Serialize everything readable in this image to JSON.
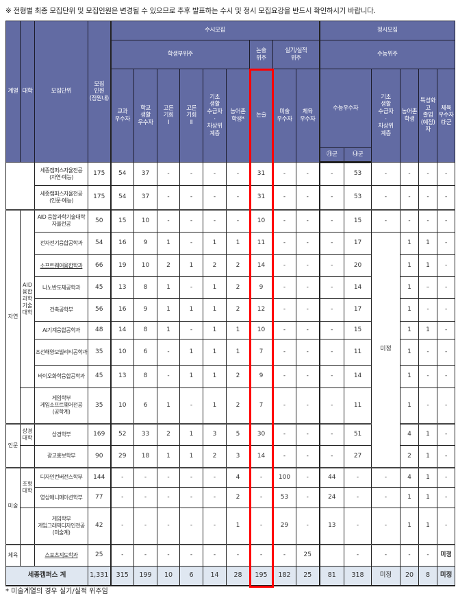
{
  "notice": "※ 전형별 최종 모집단위 및 모집인원은 변경될 수 있으므로 추후 발표하는 수시 및 정시 모집요강을 반드시 확인하시기 바랍니다.",
  "footnote": "* 미술계열의 경우 실기/실적 위주임",
  "colors": {
    "header_bg": "#626ba3",
    "total_bg": "#dfe7f1",
    "highlight": "#ff0000"
  },
  "highlighted_column": "논술",
  "header": {
    "field": "계열",
    "college": "대학",
    "unit": "모집단위",
    "quota": "모집\n인원\n(정원내)",
    "susi": "수시모집",
    "jeongsi": "정시모집",
    "susi_groups": [
      "학생부위주",
      "논술\n위주",
      "실기/실적\n위주"
    ],
    "jeongsi_group": "수능위주",
    "susi_columns": [
      "교과\n우수자",
      "학교\n생활\n우수자",
      "고른\n기회\nⅠ",
      "고른\n기회\nⅡ",
      "기초\n생활\n수급자\n·\n차상위\n계층",
      "농어촌\n학생*",
      "논술",
      "미술\n우수자",
      "체육\n우수자"
    ],
    "suneung_excellent": "수능우수자",
    "suneung_sub": [
      "㉮군",
      "㉯군"
    ],
    "jeongsi_columns": [
      "기초\n생활\n수급자\n·\n차상위\n계층",
      "농어촌\n학생",
      "특성화\n고\n졸업\n(예정)\n자",
      "체육\n우수자\n㉰군"
    ]
  },
  "groups": {
    "nature": "자연",
    "humanities": "인문",
    "art": "미술",
    "sports": "체육",
    "aid_college": "AID\n융합\n과학\n기술\n대학",
    "business_college": "상경\n대학",
    "design_college": "조형\n대학"
  },
  "rows": [
    {
      "unit": "세종캠퍼스자율전공\n(자연·예능)",
      "quota": "175",
      "values": [
        "54",
        "37",
        "-",
        "-",
        "-",
        "-",
        "31",
        "-",
        "-",
        "-",
        "53",
        "-",
        "-",
        "-",
        "-"
      ]
    },
    {
      "unit": "세종캠퍼스자율전공\n(인문·예능)",
      "quota": "175",
      "values": [
        "54",
        "37",
        "-",
        "-",
        "-",
        "-",
        "31",
        "-",
        "-",
        "-",
        "53",
        "-",
        "-",
        "-",
        "-"
      ]
    },
    {
      "unit": "AID 융합과학기술대학\n자율전공",
      "quota": "50",
      "values": [
        "15",
        "10",
        "-",
        "-",
        "-",
        "-",
        "10",
        "-",
        "-",
        "-",
        "15",
        "-",
        "-",
        "-",
        "-"
      ]
    },
    {
      "unit": "전자전기융합공학과",
      "quota": "54",
      "values": [
        "16",
        "9",
        "1",
        "-",
        "1",
        "1",
        "11",
        "-",
        "-",
        "-",
        "17",
        "미정",
        "1",
        "1",
        "-"
      ]
    },
    {
      "unit": "소프트웨어융합학과",
      "quota": "66",
      "values": [
        "19",
        "10",
        "2",
        "1",
        "2",
        "2",
        "14",
        "-",
        "-",
        "-",
        "20",
        null,
        "1",
        "1",
        "-"
      ]
    },
    {
      "unit": "나노반도체공학과",
      "quota": "45",
      "values": [
        "13",
        "8",
        "1",
        "-",
        "1",
        "2",
        "9",
        "-",
        "-",
        "-",
        "14",
        null,
        "1",
        "–",
        "-"
      ]
    },
    {
      "unit": "건축공학부",
      "quota": "56",
      "values": [
        "16",
        "9",
        "1",
        "1",
        "1",
        "2",
        "12",
        "-",
        "-",
        "-",
        "17",
        null,
        "1",
        "-",
        "-"
      ]
    },
    {
      "unit": "AI기계융합공학과",
      "quota": "48",
      "values": [
        "14",
        "8",
        "1",
        "-",
        "1",
        "1",
        "10",
        "-",
        "-",
        "-",
        "15",
        null,
        "1",
        "1",
        "-"
      ]
    },
    {
      "unit": "조선해양모빌리티공학과",
      "quota": "35",
      "values": [
        "10",
        "6",
        "-",
        "1",
        "1",
        "1",
        "7",
        "-",
        "-",
        "-",
        "11",
        null,
        "1",
        "-",
        "-"
      ]
    },
    {
      "unit": "바이오화학융합공학과",
      "quota": "45",
      "values": [
        "13",
        "8",
        "-",
        "1",
        "1",
        "2",
        "9",
        "-",
        "-",
        "-",
        "14",
        null,
        "1",
        "-",
        "-"
      ]
    },
    {
      "unit": "게임학부\n게임소프트웨어전공\n(공학계)",
      "quota": "35",
      "values": [
        "10",
        "6",
        "1",
        "-",
        "1",
        "2",
        "7",
        "-",
        "-",
        "-",
        "11",
        null,
        "1",
        "-",
        "-"
      ]
    },
    {
      "unit": "상경학부",
      "quota": "169",
      "values": [
        "52",
        "33",
        "2",
        "1",
        "3",
        "5",
        "30",
        "-",
        "-",
        "-",
        "51",
        null,
        "4",
        "1",
        "-"
      ]
    },
    {
      "unit": "광고홍보학부",
      "quota": "90",
      "values": [
        "29",
        "18",
        "1",
        "1",
        "2",
        "3",
        "14",
        "-",
        "-",
        "-",
        "27",
        null,
        "2",
        "1",
        "-"
      ]
    },
    {
      "unit": "디자인컨버전스학부",
      "quota": "144",
      "values": [
        "-",
        "-",
        "-",
        "-",
        "-",
        "4",
        "-",
        "100",
        "-",
        "44",
        "-",
        "-",
        "4",
        "1",
        "-"
      ]
    },
    {
      "unit": "영상애니메이션학부",
      "quota": "77",
      "values": [
        "-",
        "-",
        "-",
        "-",
        "-",
        "2",
        "-",
        "53",
        "-",
        "24",
        "-",
        "-",
        "1",
        "1",
        "-"
      ]
    },
    {
      "unit": "게임학부\n게임그래픽디자인전공\n(미술계)",
      "quota": "42",
      "values": [
        "-",
        "-",
        "-",
        "-",
        "-",
        "1",
        "-",
        "29",
        "-",
        "13",
        "-",
        "-",
        "1",
        "1",
        "-"
      ]
    },
    {
      "unit": "스포츠지도학과",
      "quota": "25",
      "values": [
        "-",
        "-",
        "-",
        "-",
        "-",
        "-",
        "-",
        "-",
        "25",
        "",
        "-",
        "-",
        "-",
        "-",
        "미정"
      ]
    }
  ],
  "total": {
    "label": "세종캠퍼스 계",
    "quota": "1,331",
    "values": [
      "315",
      "199",
      "10",
      "6",
      "14",
      "28",
      "195",
      "182",
      "25",
      "81",
      "318",
      "미정",
      "20",
      "8",
      "미정"
    ]
  }
}
